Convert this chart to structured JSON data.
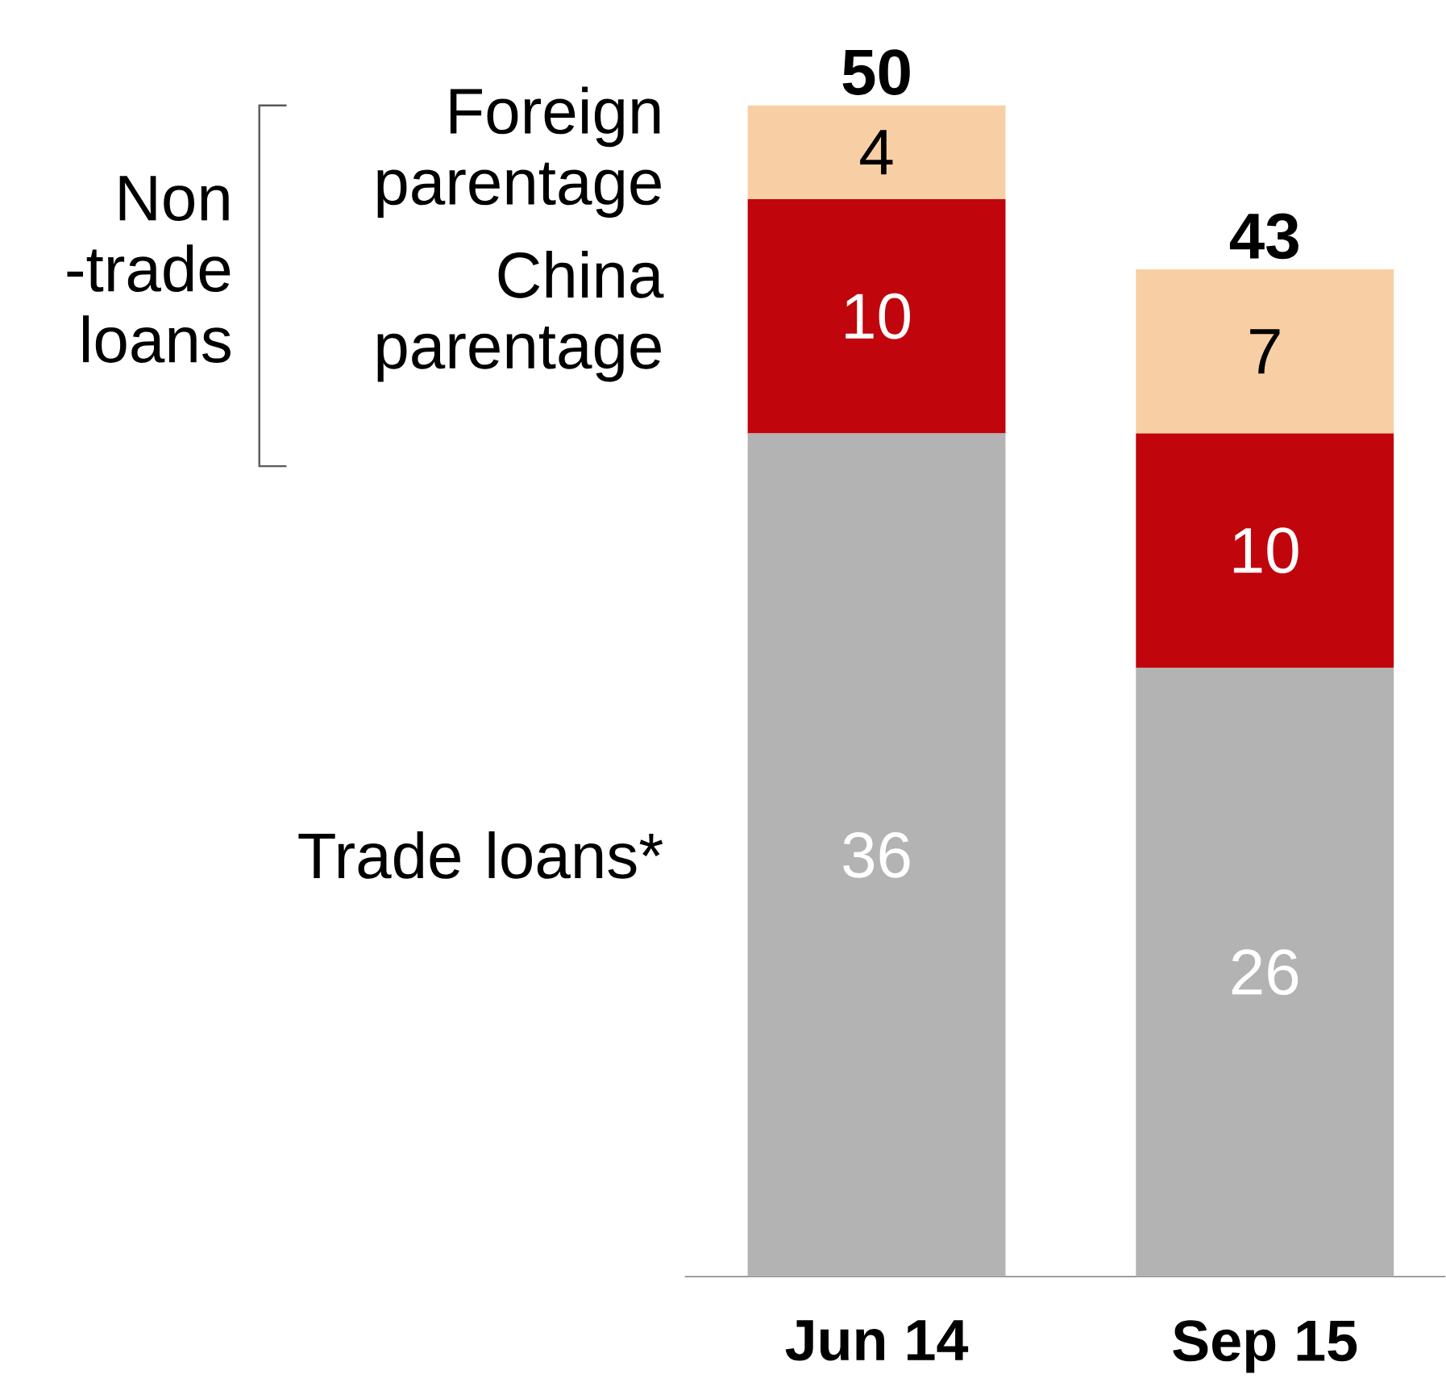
{
  "chart_data": {
    "type": "bar",
    "stacked": true,
    "data_labels": true,
    "categories": [
      "Jun 14",
      "Sep 15"
    ],
    "series": [
      {
        "name": "Trade loans*",
        "color": "#b3b3b3",
        "values": [
          36,
          26
        ]
      },
      {
        "name": "China parentage",
        "color": "#c0050c",
        "values": [
          10,
          10
        ]
      },
      {
        "name": "Foreign parentage",
        "color": "#f8cfa5",
        "values": [
          4,
          7
        ]
      }
    ],
    "totals": [
      "50",
      "43"
    ],
    "annotations": [
      "Non -trade loans"
    ]
  }
}
